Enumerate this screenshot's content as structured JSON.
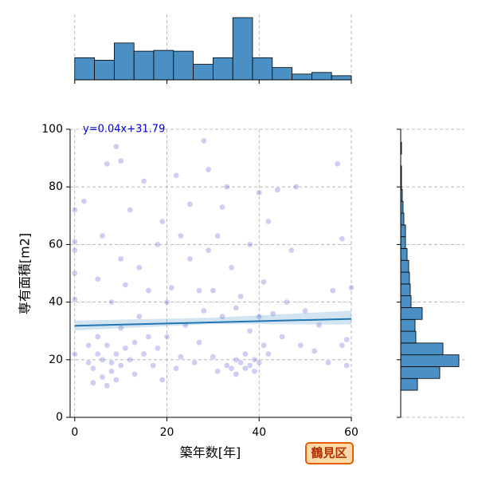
{
  "chart_data": [
    {
      "type": "scatter",
      "xlabel": "築年数[年]",
      "ylabel": "専有面積[m2]",
      "xlim": [
        -1,
        60
      ],
      "ylim": [
        0,
        100
      ],
      "xticks": [
        0,
        20,
        40,
        60
      ],
      "yticks": [
        0,
        20,
        40,
        60,
        80,
        100
      ],
      "grid": true,
      "color": "#3a3ad0",
      "x": [
        0,
        0,
        0,
        0,
        0,
        0,
        2,
        3,
        3,
        4,
        4,
        5,
        5,
        5,
        6,
        6,
        6,
        7,
        7,
        7,
        8,
        8,
        8,
        9,
        9,
        9,
        10,
        10,
        10,
        10,
        11,
        11,
        12,
        12,
        13,
        13,
        14,
        14,
        15,
        15,
        16,
        16,
        17,
        18,
        18,
        19,
        19,
        20,
        20,
        21,
        22,
        22,
        23,
        23,
        24,
        25,
        25,
        26,
        27,
        27,
        28,
        28,
        29,
        29,
        30,
        30,
        31,
        31,
        32,
        32,
        33,
        33,
        34,
        34,
        35,
        35,
        35,
        36,
        36,
        37,
        37,
        38,
        38,
        38,
        39,
        39,
        40,
        40,
        40,
        41,
        41,
        42,
        42,
        43,
        44,
        45,
        46,
        47,
        48,
        49,
        50,
        52,
        53,
        55,
        56,
        57,
        58,
        58,
        59,
        60,
        59
      ],
      "y": [
        41,
        61,
        50,
        72,
        22,
        58,
        75,
        25,
        19,
        17,
        12,
        22,
        28,
        48,
        14,
        20,
        63,
        11,
        88,
        25,
        16,
        19,
        40,
        94,
        22,
        13,
        18,
        31,
        55,
        89,
        24,
        46,
        72,
        20,
        26,
        15,
        35,
        52,
        22,
        82,
        28,
        44,
        18,
        60,
        24,
        68,
        13,
        40,
        28,
        45,
        84,
        17,
        21,
        63,
        32,
        55,
        74,
        19,
        44,
        26,
        37,
        96,
        86,
        58,
        21,
        44,
        16,
        63,
        73,
        35,
        18,
        80,
        17,
        52,
        20,
        15,
        38,
        19,
        42,
        17,
        22,
        18,
        30,
        60,
        16,
        20,
        19,
        78,
        35,
        47,
        25,
        22,
        68,
        36,
        79,
        28,
        40,
        58,
        80,
        25,
        37,
        23,
        32,
        19,
        44,
        88,
        62,
        25,
        27,
        45,
        18
      ],
      "fit": {
        "slope": 0.04,
        "intercept": 31.79,
        "label": "y=0.04x+31.79",
        "color": "#1f77b4"
      },
      "ci": {
        "x": [
          0,
          30,
          60
        ],
        "lower": [
          30.2,
          32.4,
          32.2
        ],
        "upper": [
          33.6,
          34.6,
          37
        ]
      },
      "annotation": "鶴見区"
    },
    {
      "type": "histogram",
      "orientation": "vertical",
      "color": "#4a90c4",
      "xlim": [
        -1,
        60
      ],
      "ylim": [
        0,
        80
      ],
      "xticks": [
        0,
        20,
        40,
        60
      ],
      "grid": true,
      "bins": [
        0,
        4.29,
        8.57,
        12.86,
        17.14,
        21.43,
        25.71,
        30,
        34.29,
        38.57,
        42.86,
        47.14,
        51.43,
        55.71,
        60
      ],
      "counts": [
        27,
        24,
        45,
        35,
        36,
        35,
        19,
        27,
        76,
        27,
        15,
        7,
        9,
        5
      ]
    },
    {
      "type": "histogram",
      "orientation": "horizontal",
      "color": "#4a90c4",
      "xlim": [
        0,
        80
      ],
      "ylim": [
        0,
        100
      ],
      "yticks": [
        0,
        20,
        40,
        60,
        80,
        100
      ],
      "grid": true,
      "bins": [
        9.4,
        13.5,
        17.6,
        21.7,
        25.8,
        29.9,
        34,
        38.1,
        42.2,
        46.3,
        50.4,
        54.5,
        58.6,
        62.7,
        66.8,
        70.9,
        75,
        79.1,
        83.2,
        87.3,
        91.4,
        95.5
      ],
      "counts": [
        21,
        49,
        73,
        53,
        19,
        18,
        27,
        13,
        12,
        11,
        10,
        8,
        6,
        6,
        4,
        3,
        2,
        1,
        1,
        0,
        1
      ]
    }
  ]
}
